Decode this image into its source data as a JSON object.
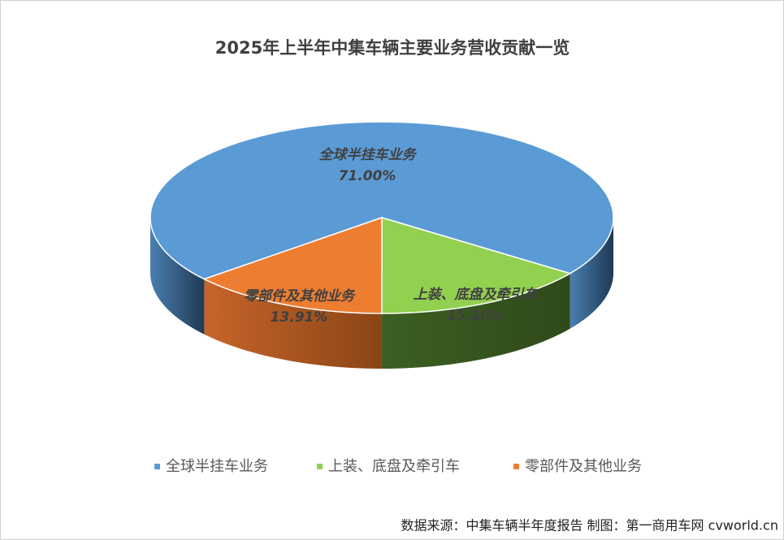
{
  "chart_data": {
    "type": "pie",
    "title": "2025年上半年中集车辆主要业务营收贡献一览",
    "categories": [
      "全球半挂车业务",
      "上装、底盘及牵引车",
      "零部件及其他业务"
    ],
    "values": [
      71.0,
      15.1,
      13.91
    ],
    "value_labels": [
      "71.00%",
      "15.10%",
      "13.91%"
    ],
    "colors": [
      "#5b9bd5",
      "#92d050",
      "#ed7d31"
    ],
    "legend": "bottom",
    "source": "数据来源：中集车辆半年度报告 制图：第一商用车网 cvworld.cn"
  }
}
